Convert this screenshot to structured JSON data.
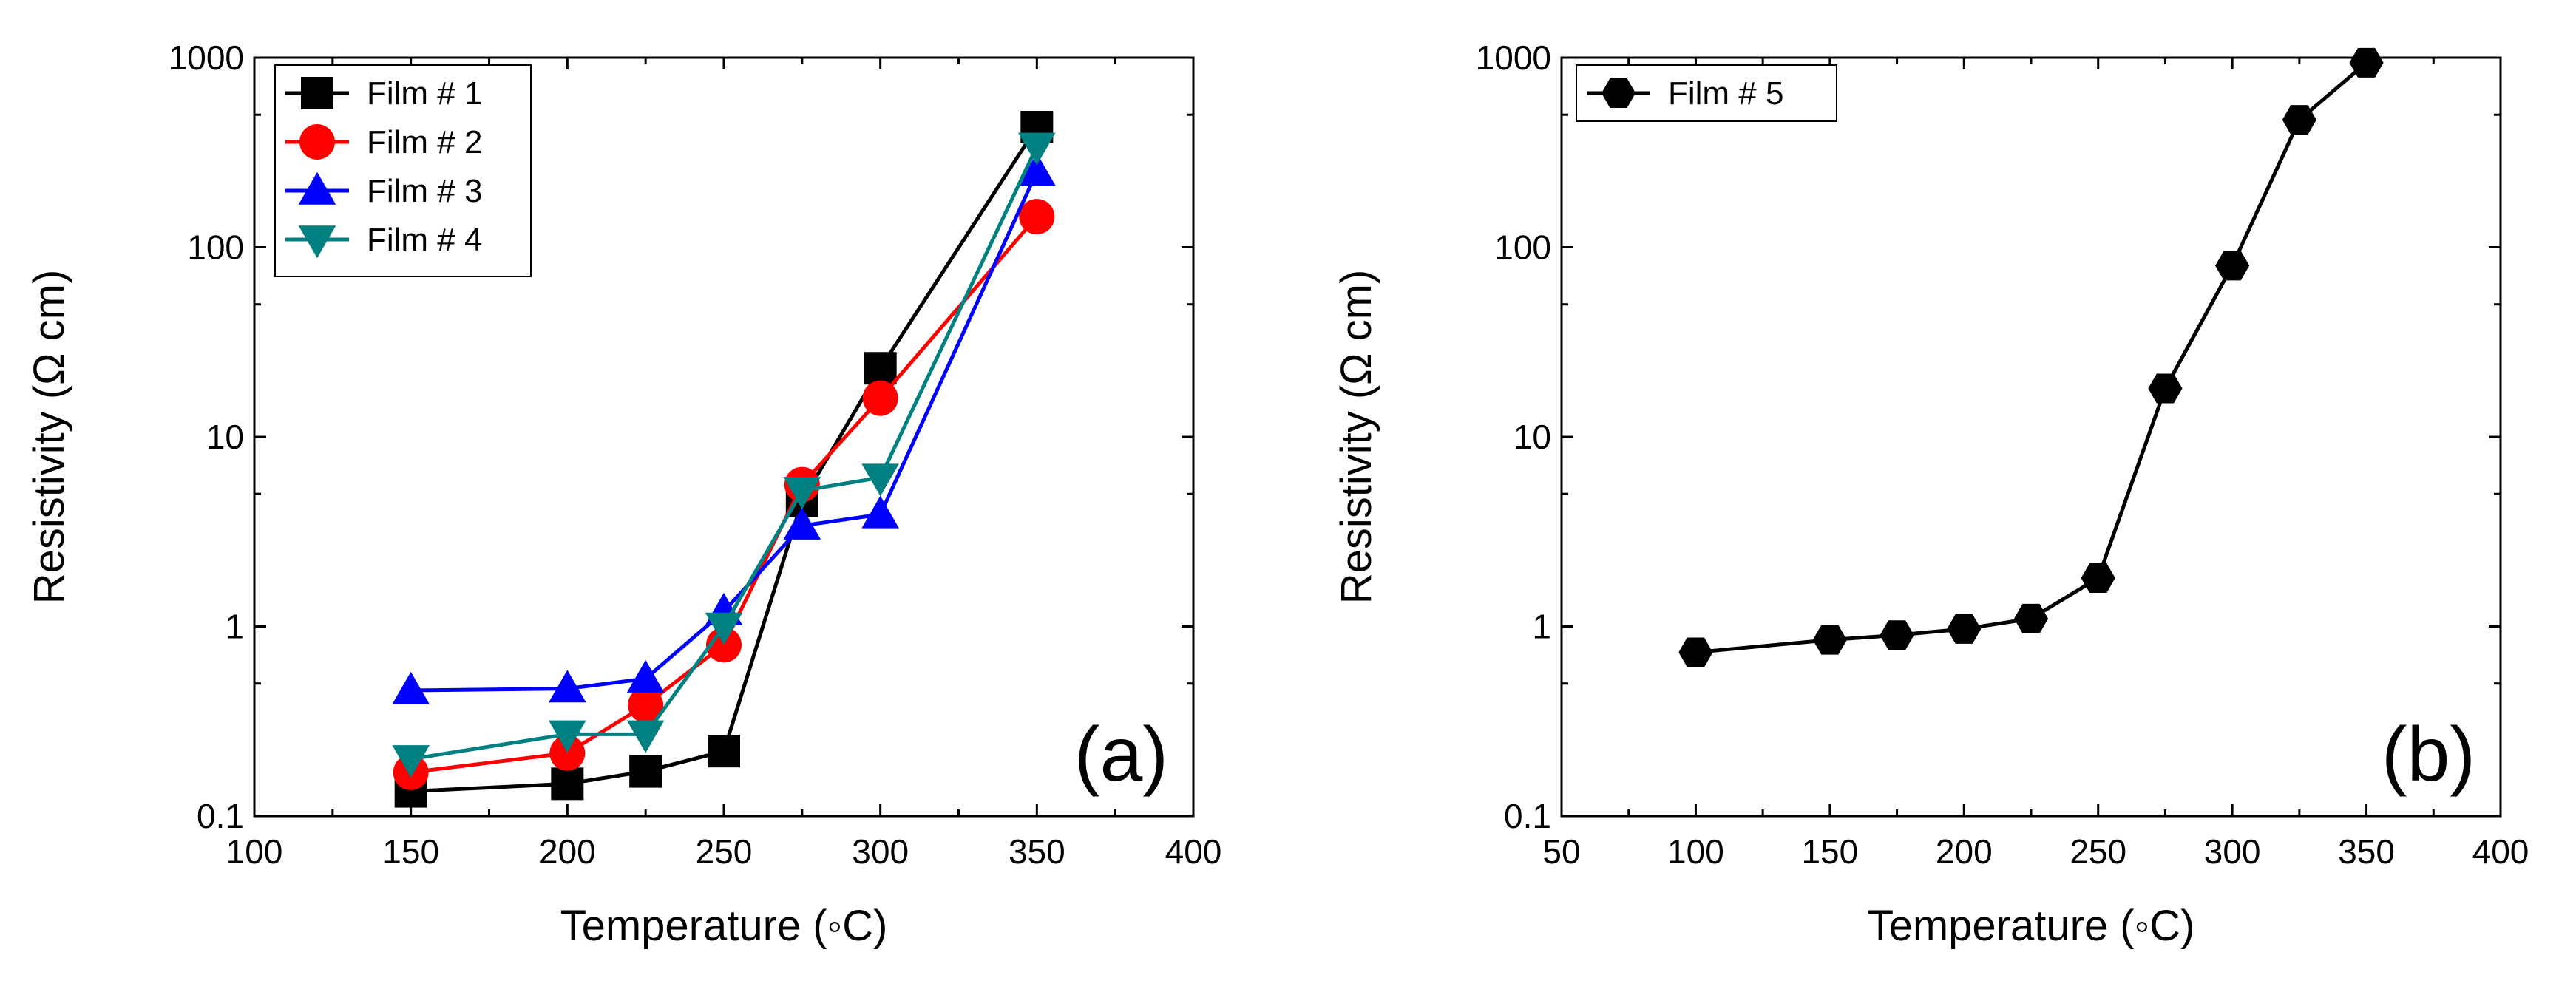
{
  "chart_data": [
    {
      "type": "line",
      "panel_label": "(a)",
      "xlabel": "Temperature (◦C)",
      "ylabel": "Resistivity (Ω cm)",
      "xlim": [
        100,
        400
      ],
      "ylim": [
        0.1,
        1000
      ],
      "yscale": "log",
      "xticks": [
        "100",
        "150",
        "200",
        "250",
        "300",
        "350",
        "400"
      ],
      "yticks": [
        "0.1",
        "1",
        "10",
        "100",
        "1000"
      ],
      "legend_position": "top-left",
      "series": [
        {
          "name": "Film # 1",
          "color": "#000000",
          "marker": "square",
          "x": [
            150,
            200,
            225,
            250,
            275,
            300,
            350
          ],
          "y": [
            0.135,
            0.148,
            0.172,
            0.22,
            4.6,
            23,
            430
          ]
        },
        {
          "name": "Film # 2",
          "color": "#ff0000",
          "marker": "circle",
          "x": [
            150,
            200,
            225,
            250,
            275,
            300,
            350
          ],
          "y": [
            0.17,
            0.215,
            0.385,
            0.8,
            5.6,
            16,
            145
          ]
        },
        {
          "name": "Film # 3",
          "color": "#0000ff",
          "marker": "triangle-up",
          "x": [
            150,
            200,
            225,
            250,
            275,
            300,
            350
          ],
          "y": [
            0.46,
            0.47,
            0.53,
            1.2,
            3.4,
            3.9,
            250
          ]
        },
        {
          "name": "Film # 4",
          "color": "#008080",
          "marker": "triangle-down",
          "x": [
            150,
            200,
            225,
            250,
            275,
            300,
            350
          ],
          "y": [
            0.2,
            0.27,
            0.27,
            1.0,
            5.2,
            6.1,
            340
          ]
        }
      ]
    },
    {
      "type": "line",
      "panel_label": "(b)",
      "xlabel": "Temperature (◦C)",
      "ylabel": "Resistivity (Ω cm)",
      "xlim": [
        50,
        400
      ],
      "ylim": [
        0.1,
        1000
      ],
      "yscale": "log",
      "xticks": [
        "50",
        "100",
        "150",
        "200",
        "250",
        "300",
        "350",
        "400"
      ],
      "yticks": [
        "0.1",
        "1",
        "10",
        "100",
        "1000"
      ],
      "legend_position": "top-left",
      "series": [
        {
          "name": "Film # 5",
          "color": "#000000",
          "marker": "hexagon",
          "x": [
            100,
            150,
            175,
            200,
            225,
            250,
            275,
            300,
            325,
            350
          ],
          "y": [
            0.73,
            0.85,
            0.9,
            0.97,
            1.1,
            1.8,
            18,
            80,
            470,
            940
          ]
        }
      ]
    }
  ]
}
